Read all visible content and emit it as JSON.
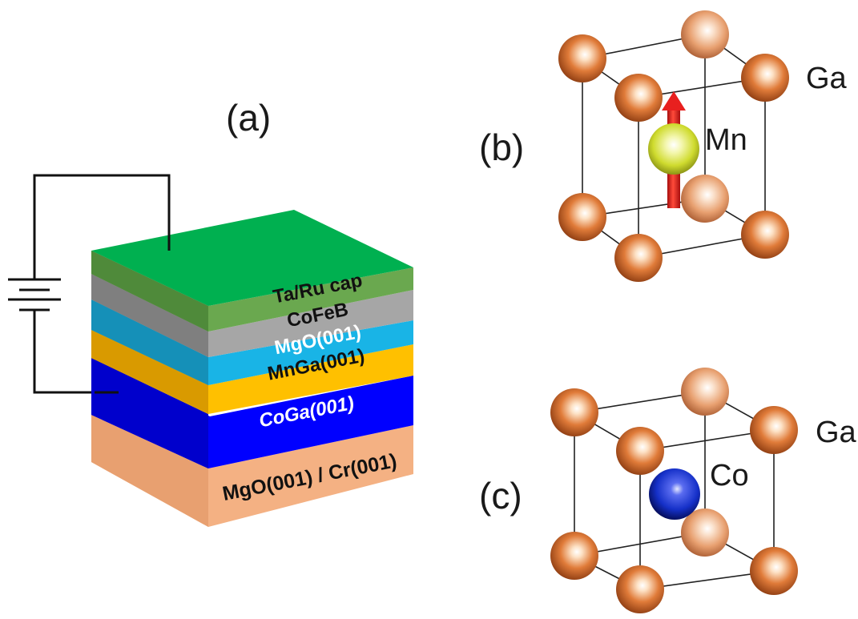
{
  "panel_a": {
    "label": "(a)",
    "layers": {
      "cap": "Ta/Ru cap",
      "cofeb": "CoFeB",
      "mgo": "MgO(001)",
      "mnga": "MnGa(001)",
      "coga": "CoGa(001)",
      "substrate": "MgO(001) / Cr(001)"
    }
  },
  "panel_b": {
    "label": "(b)",
    "corner_atom": "Ga",
    "center_atom": "Mn"
  },
  "panel_c": {
    "label": "(c)",
    "corner_atom": "Ga",
    "center_atom": "Co"
  },
  "colors": {
    "cap_top": "#00b050",
    "cap_side": "#6aa84f",
    "cofeb": "#a6a6a6",
    "mgo": "#19b4e6",
    "mnga": "#ffc000",
    "coga": "#0000ff",
    "substrate": "#f4b183",
    "ga_atom": "#e07b39",
    "mn_atom": "#d7e33a",
    "co_atom": "#1530c8",
    "spin_arrow": "#e8201f"
  }
}
